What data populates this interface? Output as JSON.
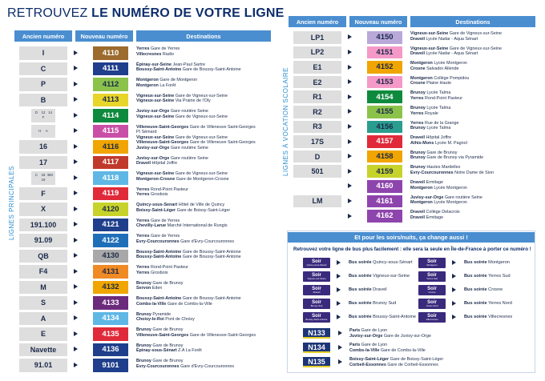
{
  "title": {
    "prefix": "RETROUVEZ ",
    "bold": "LE NUMÉRO DE VOTRE LIGNE"
  },
  "headers": {
    "old": "Ancien numéro",
    "new": "Nouveau numéro",
    "dest": "Destinations"
  },
  "labels": {
    "principales": "LIGNES PRINCIPALES",
    "scolaire": "LIGNES À VOCATION SCOLAIRE"
  },
  "left_rows": [
    {
      "old": "I",
      "new": "4110",
      "color": "#9c6b2d",
      "white": true,
      "d": [
        [
          "Yerres",
          " Gare de Yerres"
        ],
        [
          "Villecresnes",
          " Radio"
        ]
      ]
    },
    {
      "old": "C",
      "new": "4111",
      "color": "#1f3f8c",
      "white": true,
      "d": [
        [
          "Épinay-sur-Seine",
          " Jean-Paul Sartre"
        ],
        [
          "Boussy-Saint-Antoine",
          " Gare de Boussy-Saint-Antoine"
        ]
      ]
    },
    {
      "old": "P",
      "new": "4112",
      "color": "#8bc34a",
      "white": false,
      "d": [
        [
          "Montgeron",
          " Gare de Montgeron"
        ],
        [
          "Montgeron",
          " La Forêt"
        ]
      ]
    },
    {
      "old": "B",
      "new": "4113",
      "color": "#e8d52a",
      "white": false,
      "d": [
        [
          "Vigneux-sur-Seine",
          " Gare de Vigneux-sur-Seine"
        ],
        [
          "Vigneux-sur-Seine",
          " Via Prairie de l'Oly"
        ]
      ]
    },
    {
      "old": "",
      "new": "4114",
      "color": "#0e8a3e",
      "white": true,
      "multi": [
        "D",
        "12",
        "14",
        "F"
      ],
      "d": [
        [
          "Juvisy-sur-Orge",
          " Gare routière Seine"
        ],
        [
          "Vigneux-sur-Seine",
          " Gare de Vigneux-sur-Seine"
        ]
      ]
    },
    {
      "old": "",
      "new": "4115",
      "color": "#c94fa6",
      "white": true,
      "multi": [
        "H",
        "A"
      ],
      "d": [
        [
          "Villeneuve-Saint-Georges",
          " Gare de Villeneuve Saint-Georges"
        ],
        [
          "",
          " PI Sémard"
        ],
        [
          "Vigneux-sur-Seine",
          " Gare de Vigneux-sur-Seine"
        ]
      ]
    },
    {
      "old": "16",
      "new": "4116",
      "color": "#f0a500",
      "white": false,
      "d": [
        [
          "Villeneuve-Saint-Georges",
          " Gare de Villeneuve Saint-Georges"
        ],
        [
          "Juvisy-sur-Orge",
          " Gare routière Seine"
        ]
      ]
    },
    {
      "old": "17",
      "new": "4117",
      "color": "#c0392b",
      "white": true,
      "d": [
        [
          "Juvisy-sur-Orge",
          " Gare routière Seine"
        ],
        [
          "Draveil",
          " Hôpital Joffre"
        ]
      ]
    },
    {
      "old": "",
      "new": "4118",
      "color": "#5fb7e5",
      "white": true,
      "multi": [
        "C",
        "18",
        "BM",
        "19"
      ],
      "d": [
        [
          "Vigneux-sur-Seine",
          " Gare de Vigneux-sur-Seine"
        ],
        [
          "Montgeron-Crosne",
          " Gare de Montgeron-Crosne"
        ]
      ]
    },
    {
      "old": "F",
      "new": "4119",
      "color": "#e02a3a",
      "white": true,
      "d": [
        [
          "Yerres",
          " Rond-Point Pasteur"
        ],
        [
          "Yerres",
          " Grosbois"
        ]
      ]
    },
    {
      "old": "X",
      "new": "4120",
      "color": "#c7d32a",
      "white": false,
      "d": [
        [
          "Quincy-sous-Senart",
          " Hôtel de Ville de Quincy"
        ],
        [
          "Boissy-Saint-Léger",
          " Gare de Boissy-Saint-Léger"
        ]
      ]
    },
    {
      "old": "191.100",
      "new": "4121",
      "color": "#1f3f8c",
      "white": true,
      "d": [
        [
          "Yerres",
          " Gare de Yerres"
        ],
        [
          "Chevilly-Larue",
          " Marché International de Rungis"
        ]
      ]
    },
    {
      "old": "91.09",
      "new": "4122",
      "color": "#1f6fb8",
      "white": true,
      "d": [
        [
          "Yerres",
          " Gare de Yerres"
        ],
        [
          "Evry-Courcouronnes",
          " Gare d'Evry-Courcouronnes"
        ]
      ]
    },
    {
      "old": "QB",
      "new": "4130",
      "color": "#a8a8a8",
      "white": false,
      "d": [
        [
          "Boussy-Saint-Antoine",
          " Gare de Boussy-Saint-Antoine"
        ],
        [
          "Boussy-Saint-Antoine",
          " Gare de Boussy-Saint-Antoine"
        ]
      ]
    },
    {
      "old": "F4",
      "new": "4131",
      "color": "#f08a24",
      "white": false,
      "d": [
        [
          "Yerres",
          " Rond-Point Pasteur"
        ],
        [
          "Yerres",
          " Grosbois"
        ]
      ]
    },
    {
      "old": "M",
      "new": "4132",
      "color": "#f0a500",
      "white": false,
      "d": [
        [
          "Brunoy",
          " Gare de Brunoy"
        ],
        [
          "Servon",
          " Eden"
        ]
      ]
    },
    {
      "old": "S",
      "new": "4133",
      "color": "#6b2a7c",
      "white": true,
      "d": [
        [
          "Boussy-Saint-Antoine",
          " Gare de Boussy-Saint-Antoine"
        ],
        [
          "Combs-la-Ville",
          " Gare de Combs-la-Ville"
        ]
      ]
    },
    {
      "old": "A",
      "new": "4134",
      "color": "#5fb7e5",
      "white": true,
      "d": [
        [
          "Brunoy",
          " Pyramide"
        ],
        [
          "Choisy-le-Roi",
          " Pont de Choisy"
        ]
      ]
    },
    {
      "old": "E",
      "new": "4135",
      "color": "#e02a3a",
      "white": true,
      "d": [
        [
          "Brunoy",
          " Gare de Brunoy"
        ],
        [
          "Villeneuve-Saint-Georges",
          " Gare de Villeneuve-Saint-Georges"
        ]
      ]
    },
    {
      "old": "Navette",
      "new": "4136",
      "color": "#1f3f8c",
      "white": true,
      "d": [
        [
          "Brunoy",
          " Gare de Brunoy"
        ],
        [
          "Épinay-sous-Sénart",
          " Z.A La Forêt"
        ]
      ]
    },
    {
      "old": "91.01",
      "new": "9101",
      "color": "#1f3f8c",
      "white": true,
      "d": [
        [
          "Brunoy",
          " Gare de Brunoy"
        ],
        [
          "Evry-Courcouronnes",
          " Gare d'Evry-Courcouronnes"
        ]
      ]
    }
  ],
  "right_rows": [
    {
      "old": "LP1",
      "new": "4150",
      "color": "#b9a9d9",
      "white": false,
      "d": [
        [
          "Vigneux-sur-Seine",
          " Gare de Vigneux-sur-Seine"
        ],
        [
          "Draveil",
          " Lycée Nadar - Aqua Sénart"
        ]
      ]
    },
    {
      "old": "LP2",
      "new": "4151",
      "color": "#f59ac8",
      "white": false,
      "d": [
        [
          "Vigneux-sur-Seine",
          " Gare de Vigneux-sur-Seine"
        ],
        [
          "Draveil",
          " Lycée Nadar - Aqua Sénart"
        ]
      ]
    },
    {
      "old": "E1",
      "new": "4152",
      "color": "#f0a500",
      "white": false,
      "d": [
        [
          "Montgeron",
          " Lycée Montgeron"
        ],
        [
          "Crosne",
          " Salvador Allende"
        ]
      ]
    },
    {
      "old": "E2",
      "new": "4153",
      "color": "#f59ac8",
      "white": false,
      "d": [
        [
          "Montgeron",
          " Collège Pompidou"
        ],
        [
          "Crosne",
          " Plaine Haute"
        ]
      ]
    },
    {
      "old": "R1",
      "new": "4154",
      "color": "#0e8a3e",
      "white": true,
      "d": [
        [
          "Brunoy",
          " Lycée Talma"
        ],
        [
          "Yerres",
          " Rond-Point Pasteur"
        ]
      ]
    },
    {
      "old": "R2",
      "new": "4155",
      "color": "#8bc34a",
      "white": false,
      "d": [
        [
          "Brunoy",
          " Lycée Talma"
        ],
        [
          "Yerres",
          " Royale"
        ]
      ]
    },
    {
      "old": "R3",
      "new": "4156",
      "color": "#2a9d8f",
      "white": false,
      "d": [
        [
          "Yerres",
          " Rue de la Grange"
        ],
        [
          "Brunoy",
          " Lycée Talma"
        ]
      ]
    },
    {
      "old": "17S",
      "new": "4157",
      "color": "#e02a3a",
      "white": true,
      "d": [
        [
          "Draveil",
          " Hôpital Joffre"
        ],
        [
          "Athis-Mons",
          " Lycée M. Pagnol"
        ]
      ]
    },
    {
      "old": "D",
      "new": "4158",
      "color": "#f0a500",
      "white": false,
      "d": [
        [
          "Brunoy",
          " Gare de Brunoy"
        ],
        [
          "Brunoy",
          " Gare de Brunoy via Pyramide"
        ]
      ]
    },
    {
      "old": "501",
      "new": "4159",
      "color": "#c7d32a",
      "white": false,
      "d": [
        [
          "Brunoy",
          " Hautes Mardelles"
        ],
        [
          "Evry-Courcouronnes",
          " Notre Dame de Sion"
        ]
      ]
    },
    {
      "old": "",
      "new": "4160",
      "color": "#8e44ad",
      "white": true,
      "d": [
        [
          "Draveil",
          " Ermitage"
        ],
        [
          "Montgeron",
          " Lycée Montgeron"
        ]
      ]
    },
    {
      "old": "LM",
      "new": "4161",
      "color": "#8e44ad",
      "white": true,
      "d": [
        [
          "Juvisy-sur-Orge",
          " Gare routière Seine"
        ],
        [
          "Montgeron",
          " Lycée Montgeron"
        ]
      ]
    },
    {
      "old": "",
      "new": "4162",
      "color": "#8e44ad",
      "white": true,
      "d": [
        [
          "Draveil",
          " Collège Delacroix"
        ],
        [
          "Draveil",
          " Ermitage"
        ]
      ]
    }
  ],
  "soirs": {
    "bar": "Et pour les soirs/nuits, ça change aussi !",
    "sub": "Retrouvez votre ligne de bus plus facilement : elle sera la seule en Île-de-France à porter ce numéro !",
    "badge": "Soir",
    "items": [
      {
        "place": "Quincy-sous-Sénart",
        "text": "Quincy-sous-Sénart"
      },
      {
        "place": "Montgeron",
        "text": "Montgeron"
      },
      {
        "place": "Vigneux-sur-Seine",
        "text": "Vigneux-sur-Seine"
      },
      {
        "place": "Yerres Sud",
        "text": "Yerres Sud"
      },
      {
        "place": "Draveil",
        "text": "Draveil"
      },
      {
        "place": "Crosne",
        "text": "Crosne"
      },
      {
        "place": "Brunoy Sud",
        "text": "Brunoy Sud"
      },
      {
        "place": "Yerres Nord",
        "text": "Yerres Nord"
      },
      {
        "place": "Boussy-Saint-Antoine",
        "text": "Boussy-Saint-Antoine"
      },
      {
        "place": "Villecresnes",
        "text": "Villecresnes"
      }
    ],
    "prefix": "Bus soirée ",
    "nights": [
      {
        "line": "N133",
        "d": [
          [
            "Paris",
            " Gare de Lyon"
          ],
          [
            "Juvisy-sur-Orge",
            " Gare de Juvisy-sur-Orge"
          ]
        ]
      },
      {
        "line": "N134",
        "d": [
          [
            "Paris",
            " Gare de Lyon"
          ],
          [
            "Combs-la-Ville",
            " Gare de Combs-la-Ville"
          ]
        ]
      },
      {
        "line": "N135",
        "d": [
          [
            "Boissy-Saint-Léger",
            " Gare de Boissy-Saint-Léger"
          ],
          [
            "Corbeil-Essonnes",
            " Gare de Corbeil-Essonnes"
          ]
        ]
      }
    ]
  }
}
